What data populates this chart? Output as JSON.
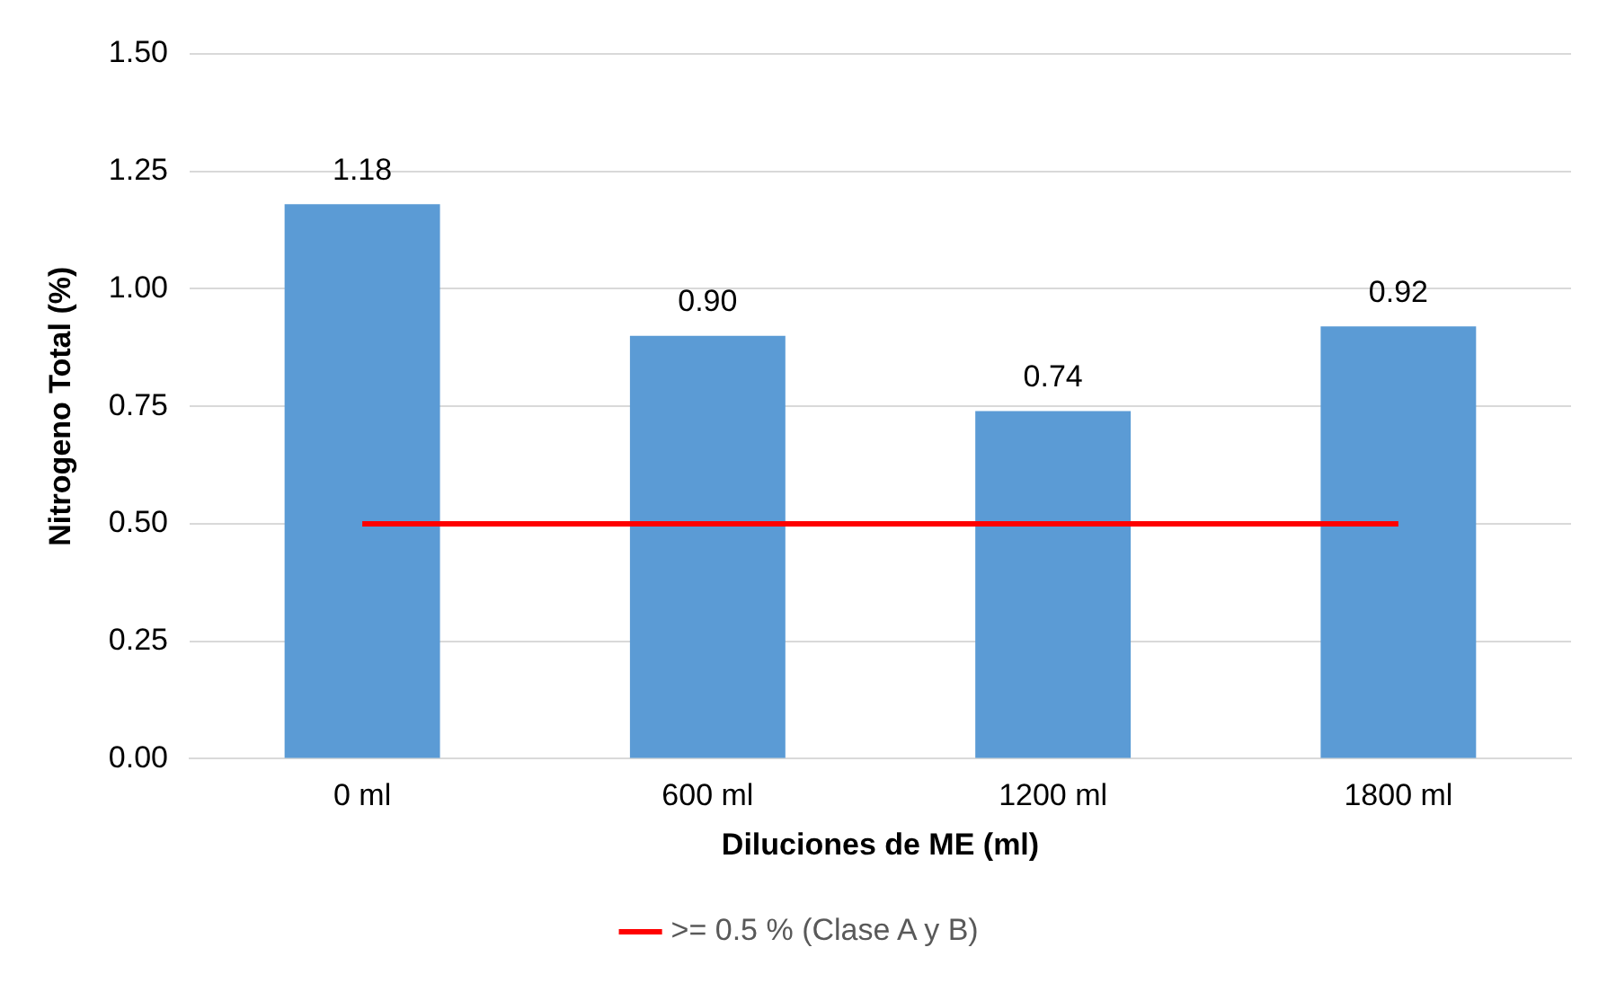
{
  "chart_data": {
    "type": "bar",
    "xlabel": "Diluciones de ME (ml)",
    "ylabel": "Nitrogeno Total (%)",
    "categories": [
      "0 ml",
      "600 ml",
      "1200 ml",
      "1800 ml"
    ],
    "series": [
      {
        "color": "#5b9bd5",
        "values": [
          1.18,
          0.9,
          0.74,
          0.92
        ],
        "value_labels": [
          "1.18",
          "0.90",
          "0.74",
          "0.92"
        ]
      },
      {
        "type": "line",
        "name": ">= 0.5 % (Clase A y B)",
        "color": "#ff0000",
        "values": [
          0.5,
          0.5,
          0.5,
          0.5
        ],
        "marker": "none",
        "line_style": "solid"
      }
    ],
    "ylim": [
      0,
      1.5
    ],
    "yticks": [
      {
        "value": 0,
        "label": "0.00"
      },
      {
        "value": 0.25,
        "label": "0.25"
      },
      {
        "value": 0.5,
        "label": "0.50"
      },
      {
        "value": 0.75,
        "label": "0.75"
      },
      {
        "value": 1,
        "label": "1.00"
      },
      {
        "value": 1.25,
        "label": "1.25"
      },
      {
        "value": 1.5,
        "label": "1.50"
      }
    ],
    "grid": "y",
    "legend": "bottom"
  }
}
